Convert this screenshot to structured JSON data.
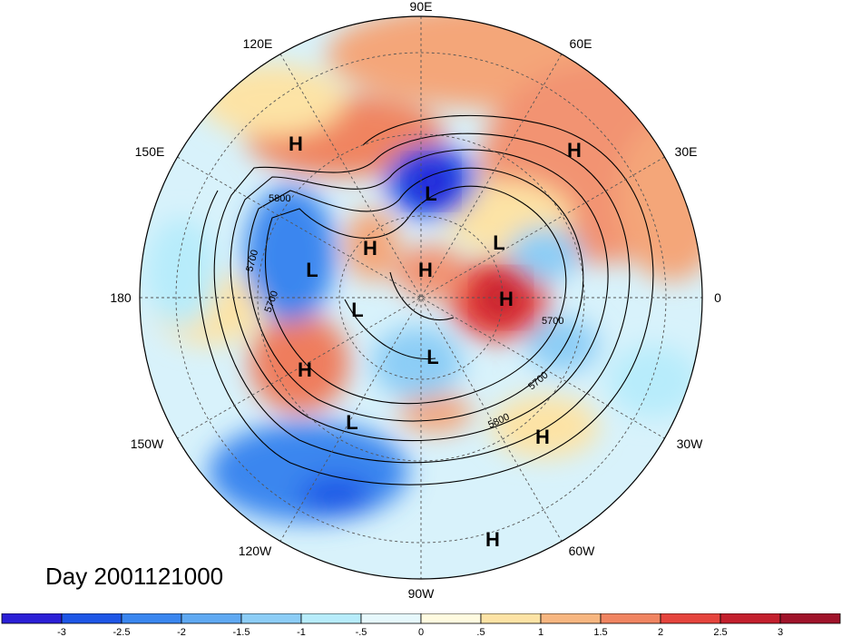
{
  "title": "Day 2001121000",
  "map": {
    "projection": "north-polar-stereographic",
    "longitude_labels": [
      "90E",
      "60E",
      "30E",
      "0",
      "30W",
      "60W",
      "90W",
      "120W",
      "150W",
      "180",
      "150E",
      "120E"
    ],
    "field": "anomaly",
    "contour_labels": [
      "5800",
      "5700",
      "5700",
      "5700",
      "5800",
      "5700"
    ],
    "centers": [
      {
        "type": "H"
      },
      {
        "type": "H"
      },
      {
        "type": "L"
      },
      {
        "type": "H"
      },
      {
        "type": "L"
      },
      {
        "type": "L"
      },
      {
        "type": "H"
      },
      {
        "type": "H"
      },
      {
        "type": "L"
      },
      {
        "type": "L"
      },
      {
        "type": "H"
      },
      {
        "type": "L"
      },
      {
        "type": "H"
      },
      {
        "type": "H"
      }
    ]
  },
  "colorbar": {
    "ticks": [
      "-3",
      "-2.5",
      "-2",
      "-1.5",
      "-1",
      "-.5",
      "0",
      ".5",
      "1",
      "1.5",
      "2",
      "2.5",
      "3"
    ],
    "colors": [
      "#2b1fd6",
      "#1e56e6",
      "#3a86ef",
      "#5fa9f2",
      "#8ccdf6",
      "#b7ecfb",
      "#e6f8fc",
      "#fffbe0",
      "#fde3a5",
      "#f7b680",
      "#f08461",
      "#e5443d",
      "#c31f2d",
      "#a0132a"
    ]
  }
}
